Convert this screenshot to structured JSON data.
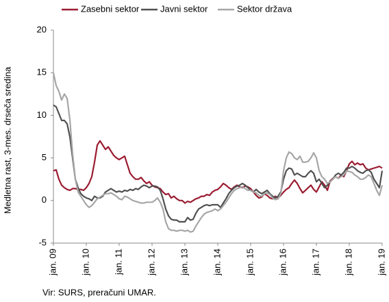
{
  "chart_data": {
    "type": "line",
    "y_label": "Medletna rast, 3-mes. drseča sredina",
    "source": "Vir: SURS, preračuni UMAR.",
    "categories": [
      "jan. 09",
      null,
      null,
      null,
      null,
      null,
      null,
      null,
      null,
      null,
      null,
      null,
      "jan. 10",
      null,
      null,
      null,
      null,
      null,
      null,
      null,
      null,
      null,
      null,
      null,
      "jan. 11",
      null,
      null,
      null,
      null,
      null,
      null,
      null,
      null,
      null,
      null,
      null,
      "jan. 12",
      null,
      null,
      null,
      null,
      null,
      null,
      null,
      null,
      null,
      null,
      null,
      "jan. 13",
      null,
      null,
      null,
      null,
      null,
      null,
      null,
      null,
      null,
      null,
      null,
      "jan. 14",
      null,
      null,
      null,
      null,
      null,
      null,
      null,
      null,
      null,
      null,
      null,
      "jan. 15",
      null,
      null,
      null,
      null,
      null,
      null,
      null,
      null,
      null,
      null,
      null,
      "jan. 16",
      null,
      null,
      null,
      null,
      null,
      null,
      null,
      null,
      null,
      null,
      null,
      "jan. 17",
      null,
      null,
      null,
      null,
      null,
      null,
      null,
      null,
      null,
      null,
      null,
      "jan. 18",
      null,
      null,
      null,
      null,
      null,
      null,
      null,
      null,
      null,
      null,
      null,
      "jan. 19"
    ],
    "series": [
      {
        "name": "Zasebni sektor",
        "color": "#9b1b30",
        "values": [
          3.5,
          3.6,
          2.5,
          1.8,
          1.5,
          1.3,
          1.2,
          1.4,
          1.4,
          1.3,
          1.3,
          1.2,
          1.5,
          2.0,
          2.8,
          4.5,
          6.5,
          7.0,
          6.5,
          6.0,
          6.3,
          5.8,
          5.3,
          5.0,
          4.8,
          5.0,
          5.2,
          4.2,
          3.2,
          2.8,
          2.5,
          2.5,
          2.7,
          2.3,
          2.0,
          2.2,
          1.8,
          1.6,
          1.5,
          1.4,
          1.0,
          0.7,
          0.8,
          0.3,
          0.5,
          0.2,
          0.0,
          0.0,
          -0.3,
          -0.1,
          -0.2,
          0.0,
          0.2,
          0.3,
          0.5,
          0.5,
          0.7,
          0.6,
          1.0,
          1.2,
          1.3,
          1.6,
          2.0,
          1.8,
          1.5,
          1.3,
          1.6,
          1.8,
          1.6,
          1.5,
          1.7,
          1.6,
          1.4,
          1.0,
          0.6,
          0.3,
          0.4,
          0.8,
          0.6,
          0.3,
          0.2,
          0.5,
          0.3,
          0.6,
          1.0,
          1.3,
          1.5,
          2.0,
          2.4,
          2.0,
          1.4,
          0.9,
          1.2,
          1.5,
          1.8,
          1.3,
          1.0,
          1.6,
          2.2,
          1.8,
          1.2,
          2.3,
          2.6,
          2.8,
          2.6,
          3.0,
          2.8,
          3.5,
          4.3,
          4.6,
          4.2,
          4.4,
          4.2,
          4.3,
          3.8,
          3.6,
          3.7,
          3.8,
          3.9,
          4.0,
          3.8
        ]
      },
      {
        "name": "Javni sektor",
        "color": "#505050",
        "values": [
          11.2,
          11.0,
          10.2,
          9.4,
          9.4,
          9.0,
          7.5,
          5.0,
          2.5,
          1.5,
          0.8,
          0.5,
          0.3,
          0.2,
          0.0,
          0.5,
          0.3,
          0.3,
          0.5,
          1.0,
          1.2,
          1.4,
          1.2,
          1.0,
          1.1,
          1.0,
          1.2,
          1.1,
          1.3,
          1.2,
          1.4,
          1.3,
          1.6,
          1.8,
          1.7,
          1.5,
          1.7,
          1.7,
          1.6,
          1.2,
          0.2,
          -1.0,
          -1.8,
          -2.2,
          -2.3,
          -2.3,
          -2.5,
          -2.5,
          -2.5,
          -2.0,
          -2.3,
          -2.2,
          -1.5,
          -1.0,
          -0.8,
          -0.6,
          -0.5,
          -0.6,
          -0.5,
          -0.5,
          -0.5,
          -0.8,
          -0.3,
          0.2,
          0.8,
          1.2,
          1.5,
          1.7,
          1.8,
          2.0,
          1.8,
          1.5,
          1.2,
          1.0,
          1.3,
          1.0,
          0.8,
          1.0,
          1.2,
          0.8,
          0.5,
          0.3,
          0.5,
          1.0,
          2.5,
          3.5,
          3.8,
          3.7,
          3.0,
          3.2,
          3.0,
          2.8,
          2.8,
          3.2,
          3.5,
          3.2,
          2.2,
          2.5,
          2.0,
          1.5,
          1.8,
          2.2,
          2.5,
          3.0,
          3.2,
          3.0,
          3.3,
          3.8,
          3.8,
          4.0,
          3.8,
          3.5,
          3.3,
          3.2,
          3.5,
          3.6,
          3.3,
          2.5,
          2.0,
          1.5,
          3.5
        ]
      },
      {
        "name": "Sektor država",
        "color": "#a6a6a6",
        "values": [
          15.0,
          13.5,
          12.8,
          11.8,
          12.5,
          12.0,
          9.5,
          5.5,
          2.5,
          1.0,
          0.5,
          0.0,
          -0.5,
          -0.8,
          -0.6,
          -0.2,
          0.2,
          0.4,
          0.6,
          0.8,
          0.8,
          0.9,
          0.7,
          0.5,
          0.2,
          0.1,
          0.5,
          0.4,
          0.2,
          0.0,
          -0.1,
          -0.2,
          -0.3,
          -0.3,
          -0.2,
          -0.2,
          -0.2,
          0.0,
          0.3,
          -0.2,
          -1.0,
          -2.5,
          -3.3,
          -3.5,
          -3.5,
          -3.6,
          -3.5,
          -3.5,
          -3.6,
          -3.5,
          -3.7,
          -3.6,
          -3.0,
          -2.5,
          -2.0,
          -1.6,
          -1.4,
          -1.3,
          -1.2,
          -1.0,
          -1.2,
          -1.0,
          -0.6,
          -0.2,
          0.3,
          0.8,
          1.2,
          1.4,
          1.5,
          1.6,
          1.4,
          1.2,
          1.2,
          1.0,
          0.9,
          0.6,
          0.5,
          0.8,
          0.9,
          0.7,
          0.3,
          0.1,
          0.2,
          0.8,
          3.5,
          5.0,
          5.7,
          5.5,
          5.0,
          4.8,
          5.2,
          4.5,
          4.5,
          4.6,
          5.0,
          5.6,
          5.0,
          3.5,
          2.8,
          2.5,
          2.0,
          2.2,
          2.5,
          2.8,
          2.6,
          2.8,
          3.0,
          3.5,
          3.4,
          3.3,
          3.0,
          2.8,
          2.5,
          2.5,
          2.7,
          3.0,
          2.8,
          2.0,
          1.2,
          0.6,
          1.8
        ]
      }
    ],
    "ylim": [
      -5,
      20
    ],
    "yticks": [
      -5,
      0,
      5,
      10,
      15,
      20
    ],
    "legend": "top"
  }
}
